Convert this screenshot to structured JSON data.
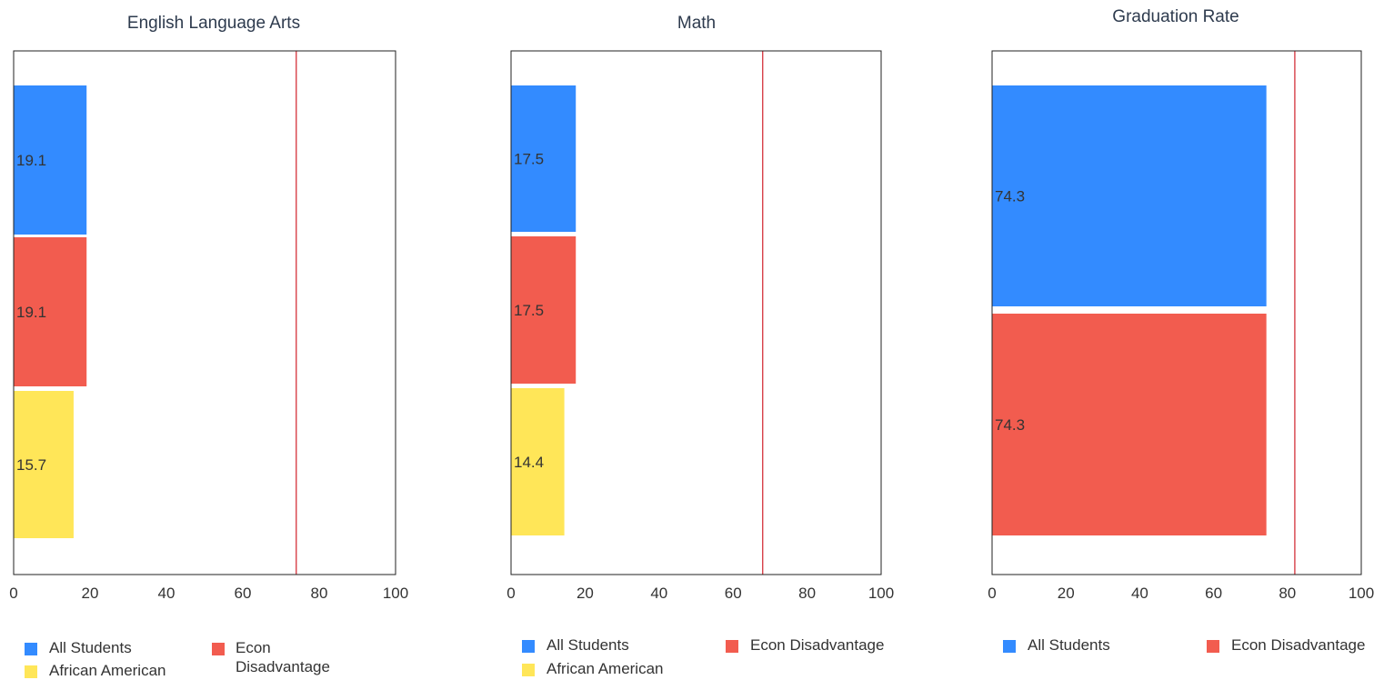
{
  "colors": {
    "all_students": "#338bff",
    "econ_disadvantage": "#f25c4f",
    "african_american": "#ffe658",
    "target_line": "#d0202a"
  },
  "chart_data": [
    {
      "type": "bar",
      "orientation": "horizontal",
      "title": "English Language Arts",
      "categories": [
        "All Students",
        "Econ Disadvantage",
        "African American"
      ],
      "values": [
        19.1,
        19.1,
        15.7
      ],
      "data_labels": [
        "19.1",
        "19.1",
        "15.7"
      ],
      "xlim": [
        0,
        100
      ],
      "x_ticks": [
        "0",
        "20",
        "40",
        "60",
        "80",
        "100"
      ],
      "reference_line": 74,
      "grid": false,
      "legend": [
        {
          "label": "All Students",
          "color_key": "all_students"
        },
        {
          "label": "Econ Disadvantage",
          "color_key": "econ_disadvantage"
        },
        {
          "label": "African American",
          "color_key": "african_american"
        }
      ]
    },
    {
      "type": "bar",
      "orientation": "horizontal",
      "title": "Math",
      "categories": [
        "All Students",
        "Econ Disadvantage",
        "African American"
      ],
      "values": [
        17.5,
        17.5,
        14.4
      ],
      "data_labels": [
        "17.5",
        "17.5",
        "14.4"
      ],
      "xlim": [
        0,
        100
      ],
      "x_ticks": [
        "0",
        "20",
        "40",
        "60",
        "80",
        "100"
      ],
      "reference_line": 68,
      "grid": false,
      "legend": [
        {
          "label": "All Students",
          "color_key": "all_students"
        },
        {
          "label": "Econ Disadvantage",
          "color_key": "econ_disadvantage"
        },
        {
          "label": "African American",
          "color_key": "african_american"
        }
      ]
    },
    {
      "type": "bar",
      "orientation": "horizontal",
      "title": "Graduation Rate",
      "categories": [
        "All Students",
        "Econ Disadvantage"
      ],
      "values": [
        74.3,
        74.3
      ],
      "data_labels": [
        "74.3",
        "74.3"
      ],
      "xlim": [
        0,
        100
      ],
      "x_ticks": [
        "0",
        "20",
        "40",
        "60",
        "80",
        "100"
      ],
      "reference_line": 82,
      "grid": false,
      "legend": [
        {
          "label": "All Students",
          "color_key": "all_students"
        },
        {
          "label": "Econ Disadvantage",
          "color_key": "econ_disadvantage"
        }
      ]
    }
  ]
}
